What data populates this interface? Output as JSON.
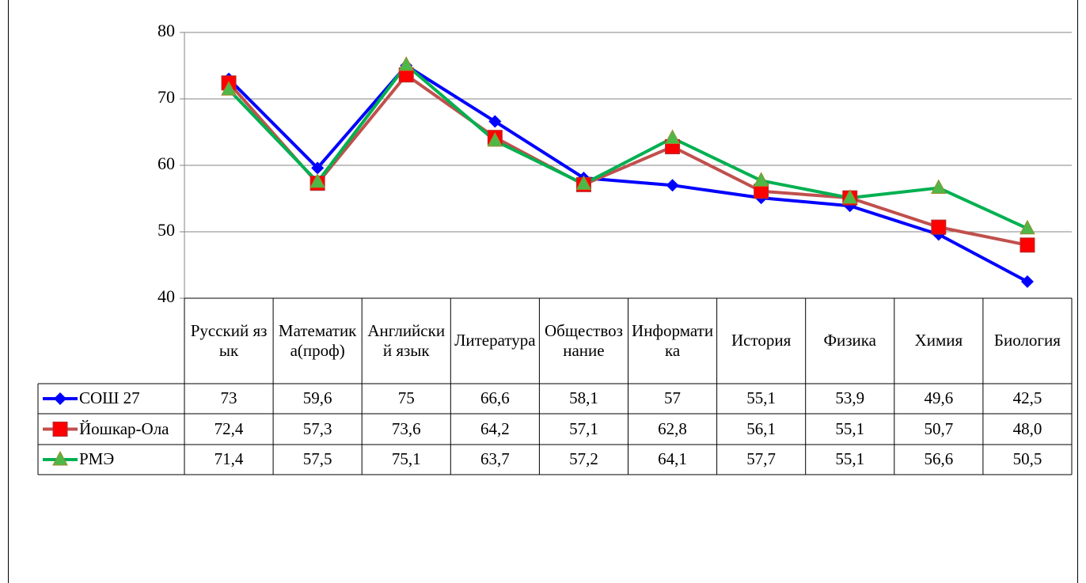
{
  "chart_data": {
    "type": "line",
    "categories": [
      "Русский язык",
      "Математика(проф)",
      "Английский язык",
      "Литература",
      "Обществознание",
      "Информатика",
      "История",
      "Физика",
      "Химия",
      "Биология"
    ],
    "series": [
      {
        "name": "СОШ 27",
        "color": "#0000ff",
        "marker": "diamond",
        "marker_color": "#0000ff",
        "values": [
          73,
          59.6,
          75,
          66.6,
          58.1,
          57,
          55.1,
          53.9,
          49.6,
          42.5
        ],
        "value_labels": [
          "73",
          "59,6",
          "75",
          "66,6",
          "58,1",
          "57",
          "55,1",
          "53,9",
          "49,6",
          "42,5"
        ]
      },
      {
        "name": "Йошкар-Ола",
        "color": "#c0504d",
        "marker": "square",
        "marker_color": "#ff0000",
        "values": [
          72.4,
          57.3,
          73.6,
          64.2,
          57.1,
          62.8,
          56.1,
          55.1,
          50.7,
          48.0
        ],
        "value_labels": [
          "72,4",
          "57,3",
          "73,6",
          "64,2",
          "57,1",
          "62,8",
          "56,1",
          "55,1",
          "50,7",
          "48,0"
        ]
      },
      {
        "name": "РМЭ",
        "color": "#00b050",
        "marker": "triangle",
        "marker_color": "#4db848",
        "values": [
          71.4,
          57.5,
          75.1,
          63.7,
          57.2,
          64.1,
          57.7,
          55.1,
          56.6,
          50.5
        ],
        "value_labels": [
          "71,4",
          "57,5",
          "75,1",
          "63,7",
          "57,2",
          "64,1",
          "57,7",
          "55,1",
          "56,6",
          "50,5"
        ]
      }
    ],
    "ylim": [
      40,
      80
    ],
    "yticks": [
      40,
      50,
      60,
      70,
      80
    ],
    "grid": true,
    "data_table": true
  }
}
